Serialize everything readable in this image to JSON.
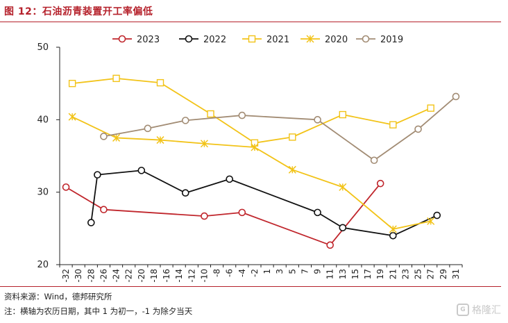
{
  "title": "图 12：石油沥青装置开工率偏低",
  "source": "资料来源：Wind，德邦研究所",
  "footnote": "注：横轴为农历日期，其中 1 为初一，-1 为除夕当天",
  "watermark": "格隆汇",
  "chart_data": {
    "type": "line",
    "title": "",
    "xlabel": "",
    "ylabel": "",
    "ylim": [
      20,
      50
    ],
    "yticks": [
      20,
      30,
      40,
      50
    ],
    "xticks": [
      -32,
      -30,
      -28,
      -26,
      -24,
      -22,
      -20,
      -18,
      -16,
      -14,
      -12,
      -10,
      -8,
      -6,
      -4,
      -2,
      1,
      3,
      5,
      7,
      9,
      11,
      13,
      15,
      17,
      19,
      21,
      23,
      25,
      27,
      29,
      31
    ],
    "legend_position": "top",
    "grid": false,
    "series": [
      {
        "name": "2023",
        "color": "#c0262c",
        "marker": "circle",
        "x": [
          -32,
          -26,
          -10,
          -4,
          11,
          19
        ],
        "y": [
          30.7,
          27.6,
          26.7,
          27.2,
          22.7,
          31.2
        ]
      },
      {
        "name": "2022",
        "color": "#111111",
        "marker": "circle",
        "x": [
          -28,
          -27,
          -20,
          -13,
          -6,
          9,
          13,
          21,
          28
        ],
        "y": [
          25.8,
          32.4,
          33.0,
          29.9,
          31.8,
          27.2,
          25.1,
          24.0,
          26.8
        ]
      },
      {
        "name": "2021",
        "color": "#f2c318",
        "marker": "square",
        "x": [
          -31,
          -24,
          -17,
          -9,
          -2,
          5,
          13,
          21,
          27
        ],
        "y": [
          45.0,
          45.7,
          45.1,
          40.8,
          36.8,
          37.6,
          40.7,
          39.3,
          41.6
        ]
      },
      {
        "name": "2020",
        "color": "#f2c318",
        "marker": "asterisk",
        "x": [
          -31,
          -24,
          -17,
          -10,
          -2,
          5,
          13,
          21,
          27
        ],
        "y": [
          40.4,
          37.5,
          37.2,
          36.7,
          36.2,
          33.1,
          30.7,
          24.9,
          26.0
        ]
      },
      {
        "name": "2019",
        "color": "#a28c74",
        "marker": "circle",
        "x": [
          -26,
          -19,
          -13,
          -4,
          9,
          18,
          25,
          31
        ],
        "y": [
          37.7,
          38.8,
          39.9,
          40.6,
          40.0,
          34.4,
          38.7,
          43.2
        ]
      }
    ]
  }
}
